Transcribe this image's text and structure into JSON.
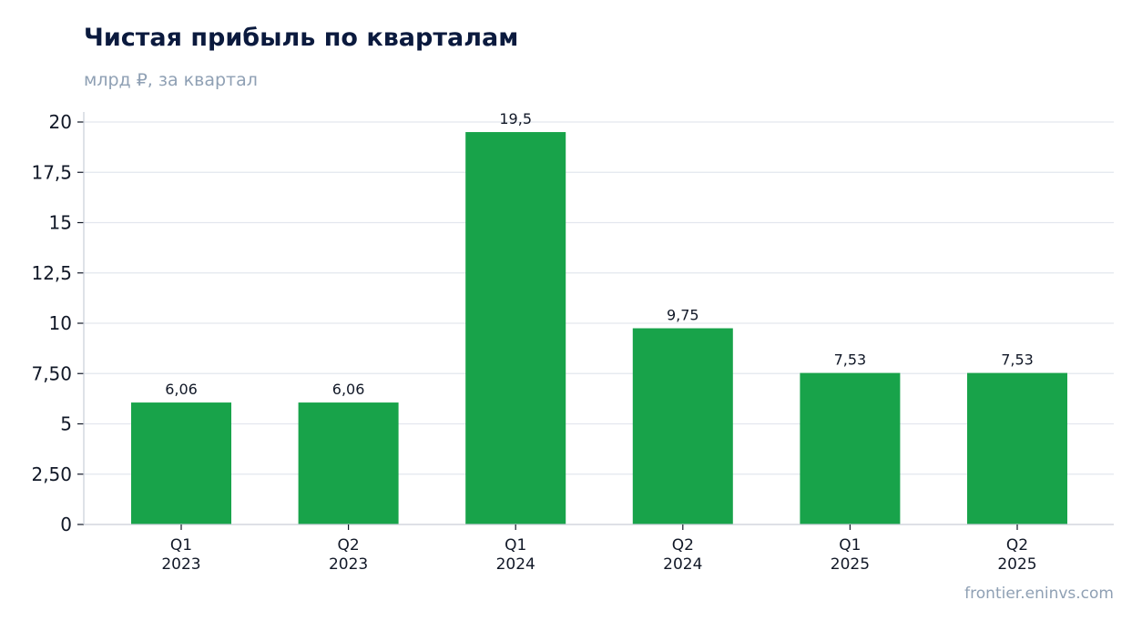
{
  "header": {
    "title": "Чистая прибыль по кварталам",
    "subtitle": "млрд ₽, за квартал"
  },
  "footer": {
    "source": "frontier.eninvs.com"
  },
  "colors": {
    "bar": "#18a34a",
    "grid": "#e3e7ee",
    "axis": "#c9ced8",
    "text": "#111827"
  },
  "chart_data": {
    "type": "bar",
    "title": "Чистая прибыль по кварталам",
    "subtitle": "млрд ₽, за квартал",
    "categories": [
      [
        "Q1",
        "2023"
      ],
      [
        "Q2",
        "2023"
      ],
      [
        "Q1",
        "2024"
      ],
      [
        "Q2",
        "2024"
      ],
      [
        "Q1",
        "2025"
      ],
      [
        "Q2",
        "2025"
      ]
    ],
    "values": [
      6.06,
      6.06,
      19.5,
      9.75,
      7.53,
      7.53
    ],
    "value_labels": [
      "6,06",
      "6,06",
      "19,5",
      "9,75",
      "7,53",
      "7,53"
    ],
    "ylim": [
      0,
      20
    ],
    "yticks": [
      0,
      2.5,
      5,
      7.5,
      10,
      12.5,
      15,
      17.5,
      20
    ],
    "ytick_labels": [
      "0",
      "2,50",
      "5",
      "7,50",
      "10",
      "12,5",
      "15",
      "17,5",
      "20"
    ],
    "grid": true,
    "legend": false
  }
}
